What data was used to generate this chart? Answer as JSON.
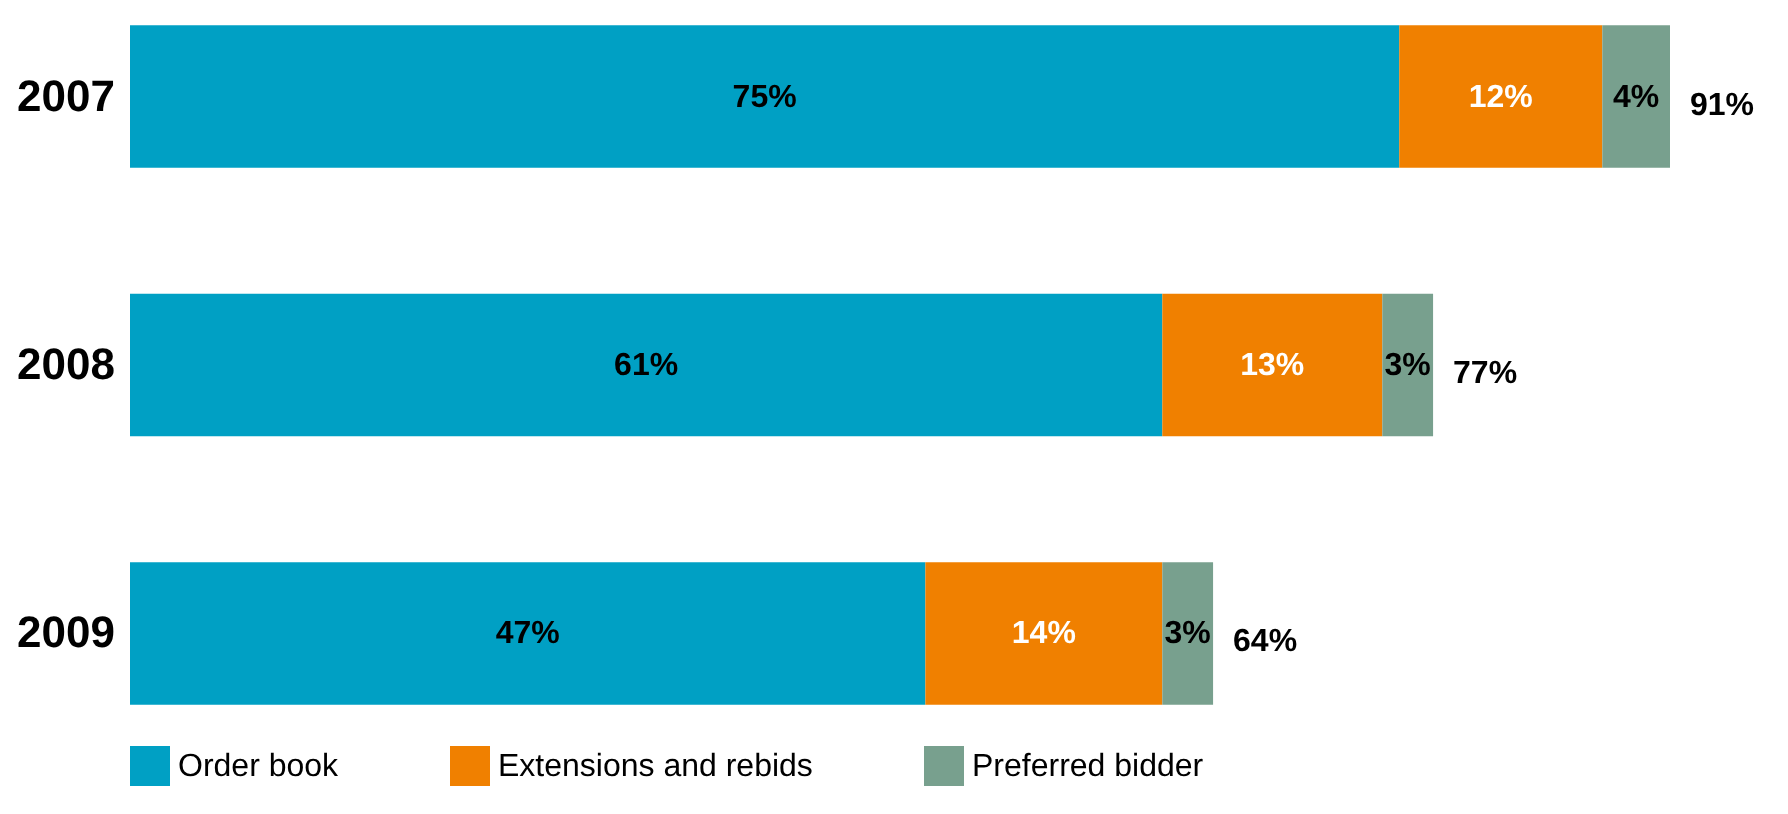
{
  "chart_data": {
    "type": "bar",
    "orientation": "horizontal",
    "stacked": true,
    "categories": [
      "2007",
      "2008",
      "2009"
    ],
    "series": [
      {
        "name": "Order book",
        "color": "#00a0c4",
        "values": [
          75,
          61,
          47
        ],
        "value_labels": [
          "75%",
          "61%",
          "47%"
        ]
      },
      {
        "name": "Extensions and rebids",
        "color": "#f08000",
        "values": [
          12,
          13,
          14
        ],
        "value_labels": [
          "12%",
          "13%",
          "14%"
        ]
      },
      {
        "name": "Preferred bidder",
        "color": "#78a08e",
        "values": [
          4,
          3,
          3
        ],
        "value_labels": [
          "4%",
          "3%",
          "3%"
        ]
      }
    ],
    "totals": [
      "91%",
      "77%",
      "64%"
    ],
    "legend": "bottom"
  }
}
